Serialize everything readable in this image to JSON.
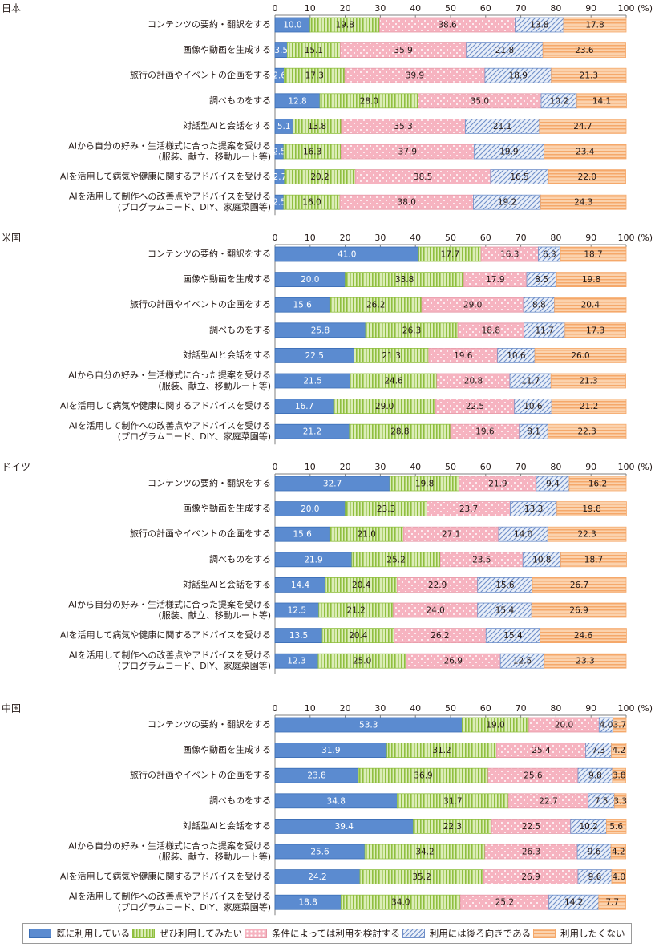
{
  "chart_data": {
    "type": "bar",
    "orientation": "horizontal",
    "stacked": true,
    "unit": "(%)",
    "xlim": [
      0,
      100
    ],
    "x_ticks": [
      0,
      10,
      20,
      30,
      40,
      50,
      60,
      70,
      80,
      90,
      100
    ],
    "legend": {
      "placement": "bottom",
      "entries": [
        "既に利用している",
        "ぜひ利用してみたい",
        "条件によっては利用を検討する",
        "利用には後ろ向きである",
        "利用したくない"
      ]
    },
    "categories": [
      [
        "コンテンツの要約・翻訳をする"
      ],
      [
        "画像や動画を生成する"
      ],
      [
        "旅行の計画やイベントの企画をする"
      ],
      [
        "調べものをする"
      ],
      [
        "対話型AIと会話をする"
      ],
      [
        "AIから自分の好み・生活様式に合った提案を受ける",
        "(服装、献立、移動ルート等)"
      ],
      [
        "AIを活用して病気や健康に関するアドバイスを受ける"
      ],
      [
        "AIを活用して制作への改善点やアドバイスを受ける",
        "(プログラムコード、DIY、家庭菜園等)"
      ]
    ],
    "series_colors": [
      "#5b8bd0",
      "#c4e08a",
      "#f6b9c4",
      "#c5d4ee",
      "#f9c9a2"
    ],
    "panels": [
      {
        "title": "日本",
        "rows": [
          [
            10.0,
            19.8,
            38.6,
            13.8,
            17.8
          ],
          [
            3.5,
            15.1,
            35.9,
            21.8,
            23.6
          ],
          [
            2.6,
            17.3,
            39.9,
            18.9,
            21.3
          ],
          [
            12.8,
            28.0,
            35.0,
            10.2,
            14.1
          ],
          [
            5.1,
            13.8,
            35.3,
            21.1,
            24.7
          ],
          [
            2.5,
            16.3,
            37.9,
            19.9,
            23.4
          ],
          [
            2.7,
            20.2,
            38.5,
            16.5,
            22.0
          ],
          [
            2.5,
            16.0,
            38.0,
            19.2,
            24.3
          ]
        ]
      },
      {
        "title": "米国",
        "rows": [
          [
            41.0,
            17.7,
            16.3,
            6.3,
            18.7
          ],
          [
            20.0,
            33.8,
            17.9,
            8.5,
            19.8
          ],
          [
            15.6,
            26.2,
            29.0,
            8.8,
            20.4
          ],
          [
            25.8,
            26.3,
            18.8,
            11.7,
            17.3
          ],
          [
            22.5,
            21.3,
            19.6,
            10.6,
            26.0
          ],
          [
            21.5,
            24.6,
            20.8,
            11.7,
            21.3
          ],
          [
            16.7,
            29.0,
            22.5,
            10.6,
            21.2
          ],
          [
            21.2,
            28.8,
            19.6,
            8.1,
            22.3
          ]
        ]
      },
      {
        "title": "ドイツ",
        "rows": [
          [
            32.7,
            19.8,
            21.9,
            9.4,
            16.2
          ],
          [
            20.0,
            23.3,
            23.7,
            13.3,
            19.8
          ],
          [
            15.6,
            21.0,
            27.1,
            14.0,
            22.3
          ],
          [
            21.9,
            25.2,
            23.5,
            10.8,
            18.7
          ],
          [
            14.4,
            20.4,
            22.9,
            15.6,
            26.7
          ],
          [
            12.5,
            21.2,
            24.0,
            15.4,
            26.9
          ],
          [
            13.5,
            20.4,
            26.2,
            15.4,
            24.6
          ],
          [
            12.3,
            25.0,
            26.9,
            12.5,
            23.3
          ]
        ]
      },
      {
        "title": "中国",
        "rows": [
          [
            53.3,
            19.0,
            20.0,
            4.0,
            3.7
          ],
          [
            31.9,
            31.2,
            25.4,
            7.3,
            4.2
          ],
          [
            23.8,
            36.9,
            25.6,
            9.8,
            3.8
          ],
          [
            34.8,
            31.7,
            22.7,
            7.5,
            3.3
          ],
          [
            39.4,
            22.3,
            22.5,
            10.2,
            5.6
          ],
          [
            25.6,
            34.2,
            26.3,
            9.6,
            4.2
          ],
          [
            24.2,
            35.2,
            26.9,
            9.6,
            4.0
          ],
          [
            18.8,
            34.0,
            25.2,
            14.2,
            7.7
          ]
        ]
      }
    ]
  }
}
